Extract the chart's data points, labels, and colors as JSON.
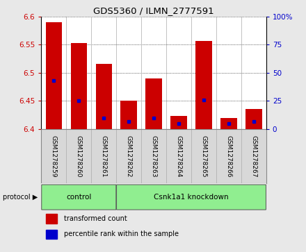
{
  "title": "GDS5360 / ILMN_2777591",
  "samples": [
    "GSM1278259",
    "GSM1278260",
    "GSM1278261",
    "GSM1278262",
    "GSM1278263",
    "GSM1278264",
    "GSM1278265",
    "GSM1278266",
    "GSM1278267"
  ],
  "transformed_counts": [
    6.59,
    6.553,
    6.516,
    6.45,
    6.49,
    6.424,
    6.557,
    6.42,
    6.436
  ],
  "percentile_ranks": [
    43,
    25,
    10,
    7,
    10,
    5,
    26,
    5,
    7
  ],
  "ylim_left": [
    6.4,
    6.6
  ],
  "ylim_right": [
    0,
    100
  ],
  "yticks_left": [
    6.4,
    6.45,
    6.5,
    6.55,
    6.6
  ],
  "yticks_right": [
    0,
    25,
    50,
    75,
    100
  ],
  "bar_color": "#cc0000",
  "percentile_color": "#0000cc",
  "bar_bottom": 6.4,
  "protocol_groups": [
    {
      "label": "control",
      "start": 0,
      "end": 2,
      "color": "#90ee90"
    },
    {
      "label": "Csnk1a1 knockdown",
      "start": 3,
      "end": 8,
      "color": "#90ee90"
    }
  ],
  "legend_items": [
    {
      "label": "transformed count",
      "color": "#cc0000"
    },
    {
      "label": "percentile rank within the sample",
      "color": "#0000cc"
    }
  ],
  "protocol_label": "protocol",
  "bg_color": "#e8e8e8",
  "plot_bg": "#ffffff",
  "label_bg": "#d8d8d8",
  "tick_label_color_left": "#cc0000",
  "tick_label_color_right": "#0000cc"
}
